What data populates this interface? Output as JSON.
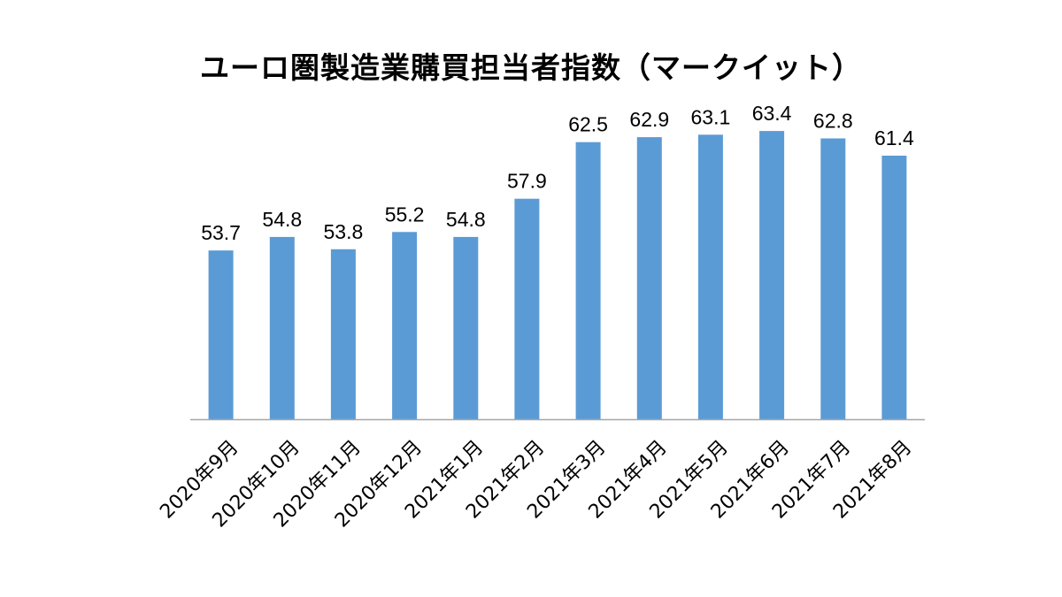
{
  "chart_data": {
    "type": "bar",
    "title": "ユーロ圏製造業購買担当者指数（マークイット）",
    "xlabel": "",
    "ylabel": "",
    "ylim": [
      40,
      67
    ],
    "grid": false,
    "legend": "none",
    "categories": [
      "2020年9月",
      "2020年10月",
      "2020年11月",
      "2020年12月",
      "2021年1月",
      "2021年2月",
      "2021年3月",
      "2021年4月",
      "2021年5月",
      "2021年6月",
      "2021年7月",
      "2021年8月"
    ],
    "values": [
      53.7,
      54.8,
      53.8,
      55.2,
      54.8,
      57.9,
      62.5,
      62.9,
      63.1,
      63.4,
      62.8,
      61.4
    ],
    "value_labels": [
      "53.7",
      "54.8",
      "53.8",
      "55.2",
      "54.8",
      "57.9",
      "62.5",
      "62.9",
      "63.1",
      "63.4",
      "62.8",
      "61.4"
    ],
    "bar_color": "#5B9BD5",
    "axis_color": "#A6A6A6"
  }
}
